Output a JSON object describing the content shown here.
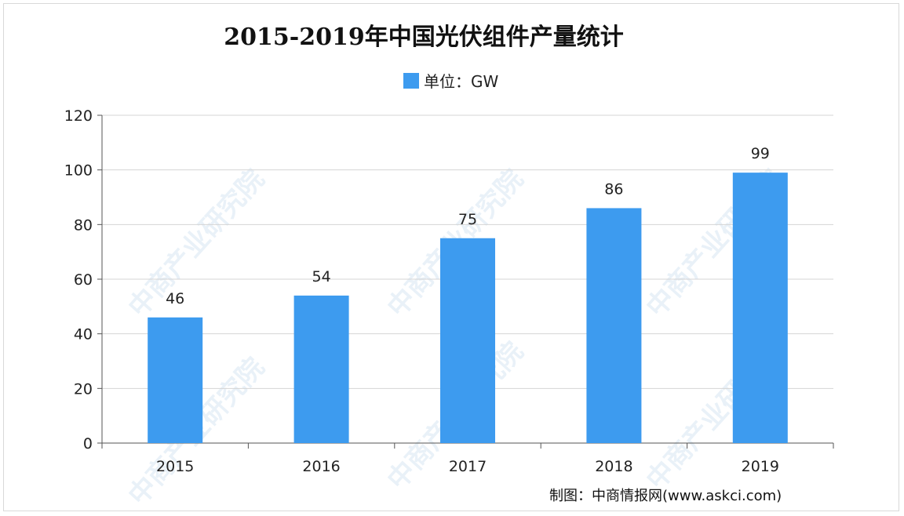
{
  "chart_data": {
    "type": "bar",
    "title": "2015-2019年中国光伏组件产量统计",
    "legend": "单位：GW",
    "categories": [
      "2015",
      "2016",
      "2017",
      "2018",
      "2019"
    ],
    "values": [
      46,
      54,
      75,
      86,
      99
    ],
    "data_labels": [
      "46",
      "54",
      "75",
      "86",
      "99"
    ],
    "yticks": [
      "0",
      "20",
      "40",
      "60",
      "80",
      "100",
      "120"
    ],
    "ylim": [
      0,
      120
    ],
    "bar_color": "#3d9bef",
    "grid": true,
    "legend_position": "top-center"
  },
  "source": "制图：中商情报网(www.askci.com)",
  "watermark": "中商产业研究院"
}
